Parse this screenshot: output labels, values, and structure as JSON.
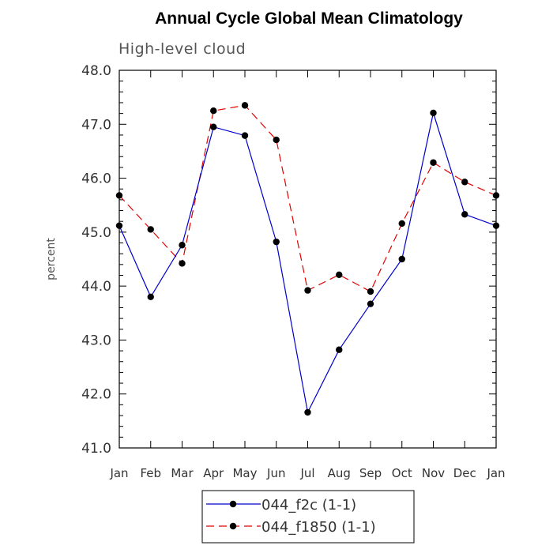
{
  "chart_data": {
    "type": "line",
    "title": "Annual Cycle Global Mean Climatology",
    "subtitle": "High-level cloud",
    "ylabel": "percent",
    "xlabel": "",
    "categories": [
      "Jan",
      "Feb",
      "Mar",
      "Apr",
      "May",
      "Jun",
      "Jul",
      "Aug",
      "Sep",
      "Oct",
      "Nov",
      "Dec",
      "Jan"
    ],
    "ylim": [
      41.0,
      48.0
    ],
    "yticks": [
      "41.0",
      "42.0",
      "43.0",
      "44.0",
      "45.0",
      "46.0",
      "47.0",
      "48.0"
    ],
    "grid": false,
    "legend_position": "bottom-center",
    "series": [
      {
        "name": "044_f2c (1-1)",
        "color": "#0000cc",
        "line_style": "solid",
        "values": [
          45.12,
          43.8,
          44.76,
          46.95,
          46.79,
          44.82,
          41.66,
          42.82,
          43.67,
          44.5,
          47.21,
          45.33,
          45.12
        ]
      },
      {
        "name": "044_f1850 (1-1)",
        "color": "#e00000",
        "line_style": "dashed",
        "values": [
          45.68,
          45.05,
          44.42,
          47.25,
          47.35,
          46.71,
          43.92,
          44.21,
          43.9,
          45.16,
          46.29,
          45.93,
          45.68
        ]
      }
    ]
  }
}
